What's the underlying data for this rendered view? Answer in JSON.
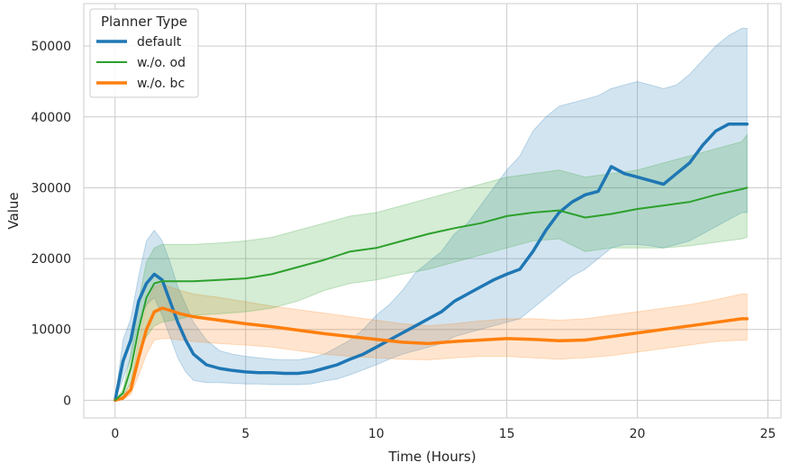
{
  "chart_data": {
    "type": "line",
    "title": "",
    "xlabel": "Time (Hours)",
    "ylabel": "Value",
    "xlim": [
      -1.2,
      25.5
    ],
    "ylim": [
      -2500,
      56000
    ],
    "xticks": [
      0,
      5,
      10,
      15,
      20,
      25
    ],
    "yticks": [
      0,
      10000,
      20000,
      30000,
      40000,
      50000
    ],
    "xtick_labels": [
      "0",
      "5",
      "10",
      "15",
      "20",
      "25"
    ],
    "ytick_labels": [
      "0",
      "10000",
      "20000",
      "30000",
      "40000",
      "50000"
    ],
    "grid": true,
    "legend": {
      "title": "Planner Type",
      "position": "top-left"
    },
    "series": [
      {
        "name": "default",
        "color": "#1f77b4",
        "line_width": 3.5,
        "x": [
          0,
          0.3,
          0.6,
          0.9,
          1.2,
          1.5,
          1.8,
          2.1,
          2.4,
          2.7,
          3.0,
          3.5,
          4.0,
          4.5,
          5.0,
          5.5,
          6.0,
          6.5,
          7.0,
          7.5,
          8.0,
          8.5,
          9.0,
          9.5,
          10.0,
          10.5,
          11.0,
          11.5,
          12.0,
          12.5,
          13.0,
          13.5,
          14.0,
          14.5,
          15.0,
          15.5,
          16.0,
          16.5,
          17.0,
          17.5,
          18.0,
          18.5,
          19.0,
          19.5,
          20.0,
          20.5,
          21.0,
          21.5,
          22.0,
          22.5,
          23.0,
          23.5,
          24.0,
          24.2
        ],
        "y": [
          0,
          5500,
          8500,
          14000,
          16500,
          17800,
          17000,
          14000,
          11000,
          8500,
          6500,
          5000,
          4500,
          4200,
          4000,
          3900,
          3900,
          3800,
          3800,
          4000,
          4500,
          5000,
          5800,
          6500,
          7500,
          8500,
          9500,
          10500,
          11500,
          12500,
          14000,
          15000,
          16000,
          17000,
          17800,
          18500,
          21000,
          24000,
          26500,
          28000,
          29000,
          29500,
          33000,
          32000,
          31500,
          31000,
          30500,
          32000,
          33500,
          36000,
          38000,
          39000,
          39000,
          39000
        ],
        "lower": [
          0,
          3000,
          6000,
          11000,
          13500,
          14500,
          12000,
          9000,
          6000,
          4000,
          2800,
          2500,
          2500,
          2400,
          2300,
          2300,
          2200,
          2200,
          2200,
          2300,
          2700,
          3000,
          3600,
          4300,
          5000,
          5800,
          6500,
          7000,
          7500,
          8000,
          9000,
          9500,
          10000,
          10500,
          11000,
          11500,
          13000,
          14500,
          16000,
          17500,
          18500,
          20000,
          21500,
          22000,
          22000,
          21800,
          21500,
          22000,
          22500,
          23500,
          24500,
          25500,
          26500,
          26500
        ],
        "upper": [
          0,
          8500,
          11500,
          17500,
          22500,
          24000,
          22500,
          19500,
          16000,
          13500,
          11000,
          8500,
          7000,
          6500,
          6200,
          6000,
          5800,
          5700,
          5700,
          6000,
          6500,
          7500,
          8500,
          10000,
          12000,
          13500,
          15500,
          18000,
          19500,
          21000,
          23500,
          25000,
          27500,
          30000,
          32500,
          34500,
          38000,
          40000,
          41500,
          42000,
          42500,
          43000,
          44000,
          44500,
          45000,
          44500,
          44000,
          44500,
          46000,
          48000,
          50000,
          51500,
          52500,
          52500
        ]
      },
      {
        "name": "w./o. od",
        "color": "#2ca02c",
        "line_width": 2,
        "x": [
          0,
          0.3,
          0.6,
          0.9,
          1.2,
          1.5,
          1.8,
          2.5,
          3.0,
          4.0,
          5.0,
          6.0,
          7.0,
          8.0,
          9.0,
          10.0,
          11.0,
          12.0,
          13.0,
          14.0,
          15.0,
          16.0,
          17.0,
          18.0,
          19.0,
          20.0,
          21.0,
          22.0,
          23.0,
          24.0,
          24.2
        ],
        "y": [
          0,
          1000,
          4500,
          10000,
          14500,
          16500,
          16800,
          16800,
          16800,
          17000,
          17200,
          17800,
          18800,
          19800,
          21000,
          21500,
          22500,
          23500,
          24300,
          25000,
          26000,
          26500,
          26800,
          25800,
          26300,
          27000,
          27500,
          28000,
          29000,
          29800,
          30000
        ],
        "lower": [
          0,
          500,
          2500,
          6500,
          9000,
          10500,
          11000,
          11500,
          12000,
          12200,
          12500,
          13000,
          14000,
          15500,
          16500,
          17000,
          17800,
          18500,
          19500,
          20500,
          21500,
          22500,
          22800,
          21000,
          21500,
          21500,
          21500,
          21800,
          22300,
          22800,
          23000
        ],
        "upper": [
          0,
          1500,
          6500,
          14000,
          19500,
          21500,
          22000,
          22000,
          22000,
          22200,
          22500,
          23000,
          24000,
          25000,
          26000,
          26500,
          27500,
          28500,
          29500,
          30500,
          31500,
          32000,
          32500,
          31500,
          32000,
          32500,
          33500,
          34500,
          35500,
          36500,
          37500
        ]
      },
      {
        "name": "w./o. bc",
        "color": "#ff7f0e",
        "line_width": 3.5,
        "x": [
          0,
          0.3,
          0.6,
          0.9,
          1.2,
          1.5,
          1.8,
          2.1,
          2.5,
          3.0,
          4.0,
          5.0,
          6.0,
          7.0,
          8.0,
          9.0,
          10.0,
          11.0,
          12.0,
          13.0,
          14.0,
          15.0,
          16.0,
          17.0,
          18.0,
          19.0,
          20.0,
          21.0,
          22.0,
          23.0,
          24.0,
          24.2
        ],
        "y": [
          0,
          300,
          1500,
          6000,
          10000,
          12500,
          13000,
          12700,
          12200,
          11800,
          11300,
          10800,
          10400,
          9900,
          9400,
          9000,
          8600,
          8200,
          8000,
          8300,
          8500,
          8700,
          8600,
          8400,
          8500,
          9000,
          9500,
          10000,
          10500,
          11000,
          11500,
          11500
        ],
        "lower": [
          0,
          100,
          800,
          3500,
          6500,
          8500,
          8700,
          8700,
          8500,
          8300,
          8000,
          7800,
          7500,
          7000,
          6500,
          6200,
          6000,
          5800,
          5700,
          6000,
          6200,
          6200,
          6000,
          5800,
          6000,
          6300,
          6800,
          7300,
          7800,
          8300,
          8500,
          8500
        ],
        "upper": [
          0,
          600,
          2500,
          8500,
          13500,
          16000,
          16500,
          16000,
          15500,
          15000,
          14500,
          13900,
          13300,
          12800,
          12300,
          11800,
          11300,
          10800,
          10500,
          10800,
          11200,
          11500,
          11500,
          11300,
          11500,
          12000,
          12500,
          13000,
          13500,
          14200,
          15000,
          15000
        ]
      }
    ]
  }
}
